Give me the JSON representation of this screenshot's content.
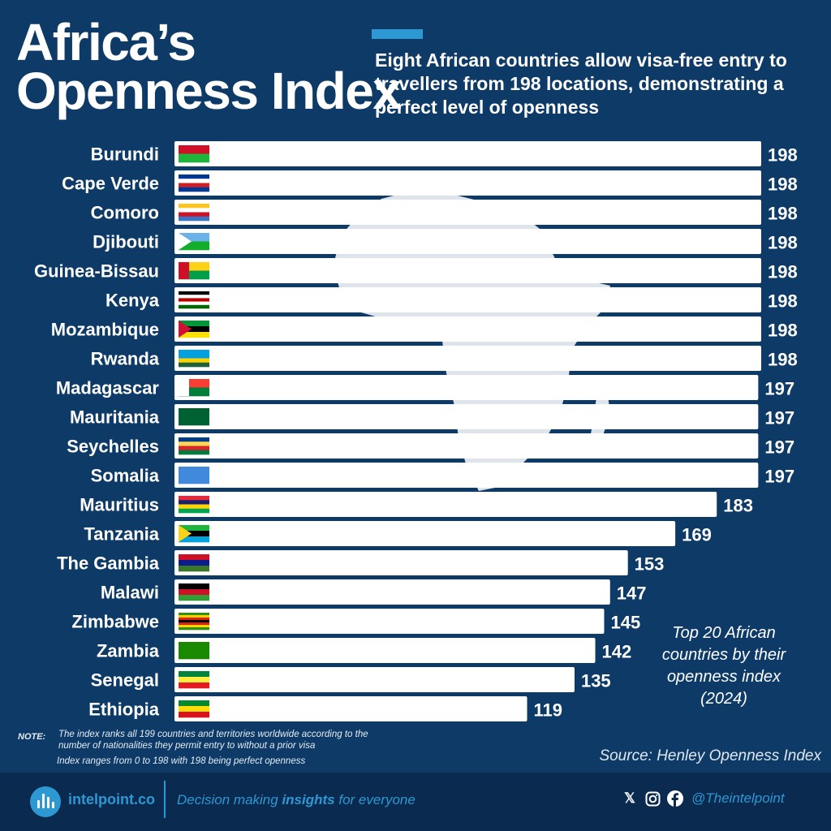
{
  "header": {
    "title_line1": "Africa’s",
    "title_line2": "Openness Index",
    "subtitle": "Eight African countries allow visa-free entry to travellers from 198 locations, demonstrating a perfect level of openness"
  },
  "chart_data": {
    "type": "bar",
    "orientation": "horizontal",
    "categories": [
      "Burundi",
      "Cape Verde",
      "Comoro",
      "Djibouti",
      "Guinea-Bissau",
      "Kenya",
      "Mozambique",
      "Rwanda",
      "Madagascar",
      "Mauritania",
      "Seychelles",
      "Somalia",
      "Mauritius",
      "Tanzania",
      "The Gambia",
      "Malawi",
      "Zimbabwe",
      "Zambia",
      "Senegal",
      "Ethiopia"
    ],
    "values": [
      198,
      198,
      198,
      198,
      198,
      198,
      198,
      198,
      197,
      197,
      197,
      197,
      183,
      169,
      153,
      147,
      145,
      142,
      135,
      119
    ],
    "xlim": [
      0,
      198
    ],
    "grid": false,
    "data_labels": true,
    "bar_color": "#ffffff",
    "background_color": "#0d3a66"
  },
  "caption": "Top 20 African countries by their openness index (2024)",
  "note": {
    "label": "NOTE:",
    "line1": "The index ranks all 199 countries and territories worldwide according to the",
    "line2": "number of nationalities they permit entry to without a prior visa",
    "line3": "Index ranges from 0 to 198 with 198 being perfect openness"
  },
  "source": "Source: Henley Openness Index",
  "footer": {
    "brand": "intelpoint.co",
    "tagline_pre": "Decision making ",
    "tagline_bold": "insights",
    "tagline_post": " for everyone",
    "handle": "@Theintelpoint",
    "icons": [
      "x-icon",
      "instagram-icon",
      "facebook-icon"
    ],
    "accent": "#2e98d3"
  }
}
